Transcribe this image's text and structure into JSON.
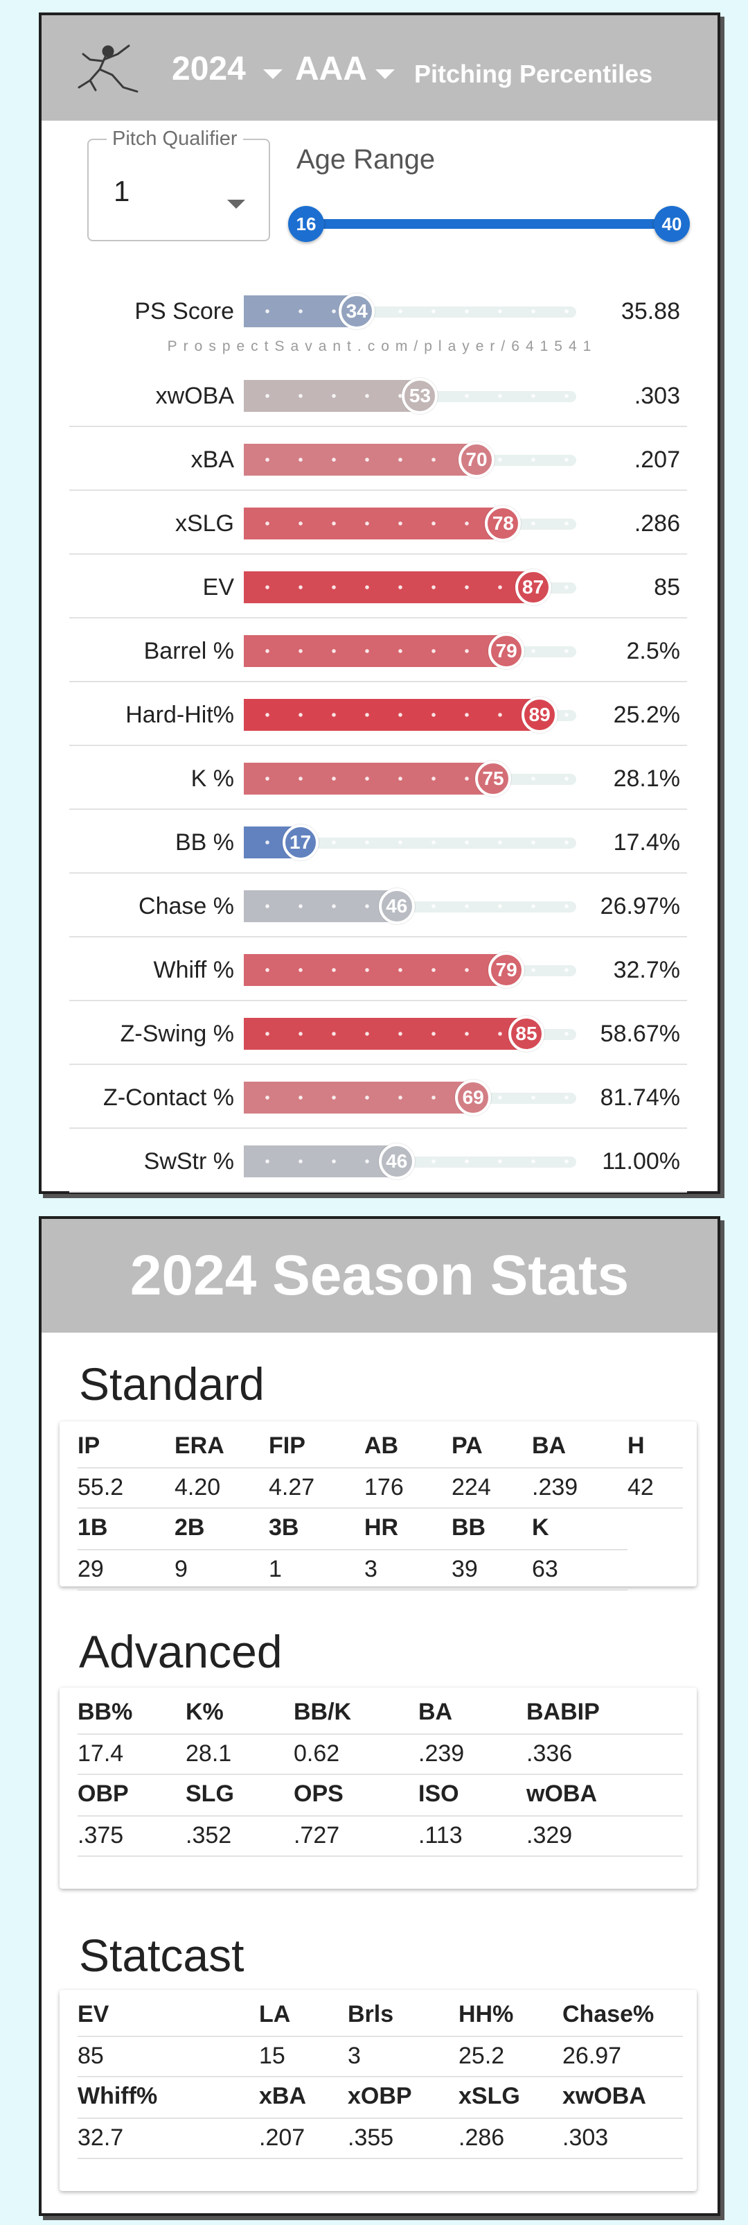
{
  "header": {
    "year": "2024",
    "level": "AAA",
    "title": "Pitching Percentiles",
    "logo_icon": "pitcher-silhouette-icon"
  },
  "filters": {
    "qualifier_label": "Pitch Qualifier",
    "qualifier_value": "1",
    "age_label": "Age Range",
    "age_min": "16",
    "age_max": "40"
  },
  "watermark": "ProspectSavant.com/player/641541",
  "percentiles": [
    {
      "name": "PS Score",
      "pct": 34,
      "value": "35.88",
      "color": "#93a3bf"
    },
    {
      "name": "xwOBA",
      "pct": 53,
      "value": ".303",
      "color": "#c2b6b6"
    },
    {
      "name": "xBA",
      "pct": 70,
      "value": ".207",
      "color": "#d37e85"
    },
    {
      "name": "xSLG",
      "pct": 78,
      "value": ".286",
      "color": "#d5646d"
    },
    {
      "name": "EV",
      "pct": 87,
      "value": "85",
      "color": "#d54b55"
    },
    {
      "name": "Barrel %",
      "pct": 79,
      "value": "2.5%",
      "color": "#d5656e"
    },
    {
      "name": "Hard-Hit%",
      "pct": 89,
      "value": "25.2%",
      "color": "#d7444f"
    },
    {
      "name": "K %",
      "pct": 75,
      "value": "28.1%",
      "color": "#d46e76"
    },
    {
      "name": "BB %",
      "pct": 17,
      "value": "17.4%",
      "color": "#6282bf"
    },
    {
      "name": "Chase %",
      "pct": 46,
      "value": "26.97%",
      "color": "#b9bcc2"
    },
    {
      "name": "Whiff %",
      "pct": 79,
      "value": "32.7%",
      "color": "#d5656e"
    },
    {
      "name": "Z-Swing %",
      "pct": 85,
      "value": "58.67%",
      "color": "#d54b55"
    },
    {
      "name": "Z-Contact %",
      "pct": 69,
      "value": "81.74%",
      "color": "#d37e85"
    },
    {
      "name": "SwStr %",
      "pct": 46,
      "value": "11.00%",
      "color": "#b9bcc2"
    }
  ],
  "season": {
    "title": "2024 Season Stats",
    "standard": {
      "title": "Standard",
      "rows": [
        [
          [
            "IP",
            "55.2"
          ],
          [
            "ERA",
            "4.20"
          ],
          [
            "FIP",
            "4.27"
          ],
          [
            "AB",
            "176"
          ],
          [
            "PA",
            "224"
          ],
          [
            "BA",
            ".239"
          ],
          [
            "H",
            "42"
          ]
        ],
        [
          [
            "1B",
            "29"
          ],
          [
            "2B",
            "9"
          ],
          [
            "3B",
            "1"
          ],
          [
            "HR",
            "3"
          ],
          [
            "BB",
            "39"
          ],
          [
            "K",
            "63"
          ]
        ]
      ]
    },
    "advanced": {
      "title": "Advanced",
      "rows": [
        [
          [
            "BB%",
            "17.4"
          ],
          [
            "K%",
            "28.1"
          ],
          [
            "BB/K",
            "0.62"
          ],
          [
            "BA",
            ".239"
          ],
          [
            "BABIP",
            ".336"
          ]
        ],
        [
          [
            "OBP",
            ".375"
          ],
          [
            "SLG",
            ".352"
          ],
          [
            "OPS",
            ".727"
          ],
          [
            "ISO",
            ".113"
          ],
          [
            "wOBA",
            ".329"
          ]
        ]
      ]
    },
    "statcast": {
      "title": "Statcast",
      "rows": [
        [
          [
            "EV",
            "85"
          ],
          [
            "LA",
            "15"
          ],
          [
            "Brls",
            "3"
          ],
          [
            "HH%",
            "25.2"
          ],
          [
            "Chase%",
            "26.97"
          ]
        ],
        [
          [
            "Whiff%",
            "32.7"
          ],
          [
            "xBA",
            ".207"
          ],
          [
            "xOBP",
            ".355"
          ],
          [
            "xSLG",
            ".286"
          ],
          [
            "xwOBA",
            ".303"
          ]
        ]
      ]
    }
  }
}
